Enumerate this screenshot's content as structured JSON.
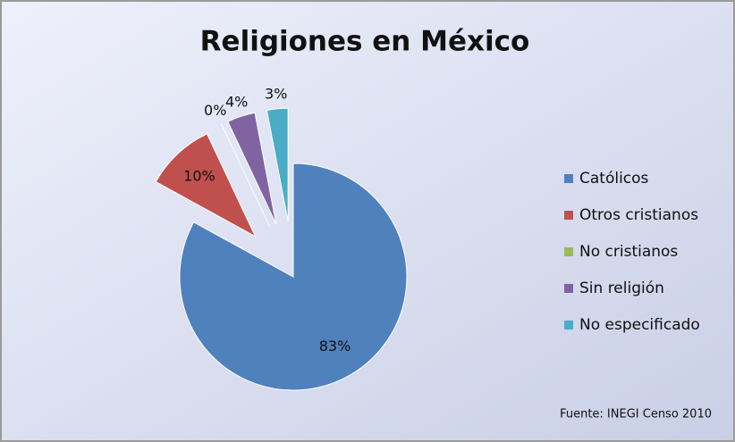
{
  "chart_data": {
    "type": "pie",
    "title": "Religiones en México",
    "categories": [
      "Católicos",
      "Otros cristianos",
      "No cristianos",
      "Sin religión",
      "No especificado"
    ],
    "values": [
      83,
      10,
      0,
      4,
      3
    ],
    "value_labels": [
      "83%",
      "10%",
      "0%",
      "4%",
      "3%"
    ],
    "colors": [
      "#4f81bd",
      "#c0504d",
      "#9bbb59",
      "#8064a2",
      "#4bacc6"
    ],
    "legend": "right",
    "source": "Fuente: INEGI Censo 2010"
  }
}
